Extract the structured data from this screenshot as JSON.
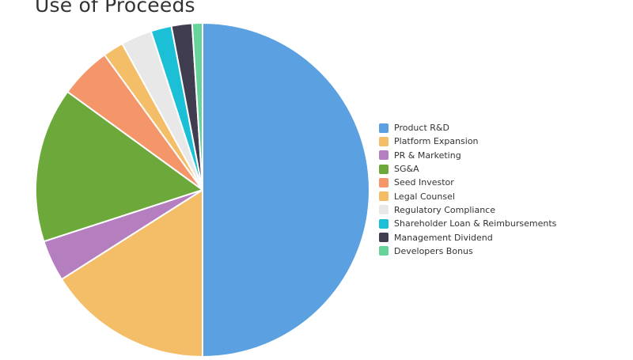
{
  "title": "Use of Proceeds",
  "chart_data": {
    "type": "pie",
    "title": "Use of Proceeds",
    "legend_position": "right",
    "slices": [
      {
        "label": "Product R&D",
        "value": 50,
        "color": "#5ba0e0"
      },
      {
        "label": "Platform Expansion",
        "value": 16,
        "color": "#f4bd68"
      },
      {
        "label": "PR & Marketing",
        "value": 4,
        "color": "#b57ebf"
      },
      {
        "label": "SG&A",
        "value": 15,
        "color": "#6ca83a"
      },
      {
        "label": "Seed Investor",
        "value": 5,
        "color": "#f4956a"
      },
      {
        "label": "Legal Counsel",
        "value": 2,
        "color": "#f4bd68"
      },
      {
        "label": "Regulatory Compliance",
        "value": 3,
        "color": "#e8e8e8"
      },
      {
        "label": "Shareholder Loan & Reimbursements",
        "value": 2,
        "color": "#1bbfd6"
      },
      {
        "label": "Management Dividend",
        "value": 2,
        "color": "#3f3d4f"
      },
      {
        "label": "Developers Bonus",
        "value": 1,
        "color": "#66d49a"
      }
    ]
  }
}
